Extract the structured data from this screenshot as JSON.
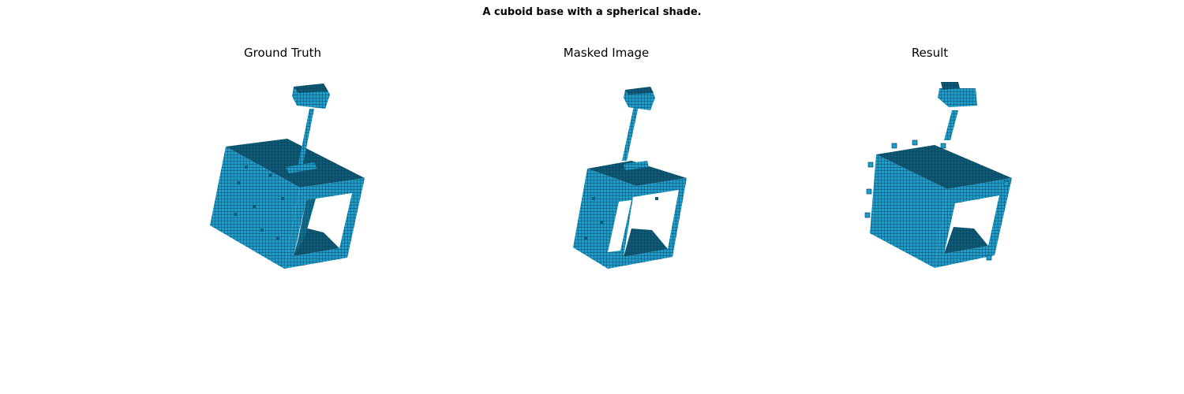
{
  "figure": {
    "suptitle": "A cuboid base with a spherical shade."
  },
  "panels": [
    {
      "title": "Ground Truth"
    },
    {
      "title": "Masked Image"
    },
    {
      "title": "Result"
    }
  ],
  "colors": {
    "voxel_face": "#1a9fd0",
    "voxel_side": "#0f6f93",
    "voxel_dark": "#063b52",
    "voxel_top": "#0c5a78",
    "grid_line": "#04303f",
    "background": "#ffffff"
  }
}
